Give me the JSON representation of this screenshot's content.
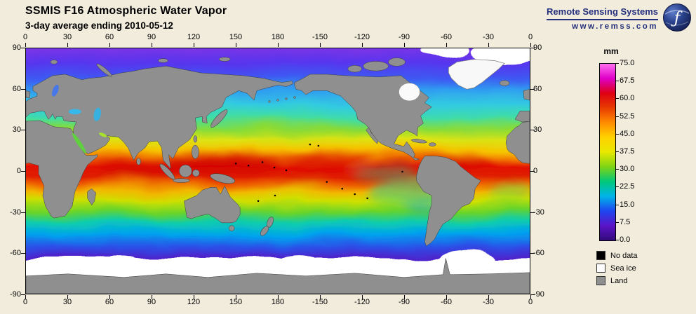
{
  "header": {
    "title": "SSMIS F16 Atmospheric Water Vapor",
    "subtitle": "3-day average ending 2010-05-12"
  },
  "branding": {
    "name": "Remote Sensing Systems",
    "url": "www.remss.com",
    "color": "#24307c"
  },
  "axes": {
    "lon_labels": [
      "0",
      "30",
      "60",
      "90",
      "120",
      "150",
      "180",
      "-150",
      "-120",
      "-90",
      "-60",
      "-30",
      "0"
    ],
    "lat_labels": [
      "90",
      "60",
      "30",
      "0",
      "-30",
      "-60",
      "-90"
    ]
  },
  "colorbar": {
    "unit": "mm",
    "tick_labels": [
      "75.0",
      "67.5",
      "60.0",
      "52.5",
      "45.0",
      "37.5",
      "30.0",
      "22.5",
      "15.0",
      "7.5",
      "0.0"
    ],
    "gradient": [
      "#ff70f0",
      "#e000c8",
      "#dd0012",
      "#e83c00",
      "#ff8c00",
      "#ffd200",
      "#e8e800",
      "#7fd414",
      "#00c87a",
      "#00b4e8",
      "#1e46f0",
      "#5a14c8",
      "#320a78"
    ]
  },
  "legend": {
    "items": [
      {
        "label": "No data",
        "color": "#000000"
      },
      {
        "label": "Sea ice",
        "color": "#ffffff"
      },
      {
        "label": "Land",
        "color": "#8f8f8f"
      }
    ]
  },
  "chart_data": {
    "type": "heatmap",
    "title": "SSMIS F16 Atmospheric Water Vapor",
    "subtitle": "3-day average ending 2010-05-12",
    "variable": "columnar atmospheric water vapor over ocean",
    "units": "mm",
    "projection": "equirectangular global grid",
    "x_axis": {
      "label": "longitude",
      "range": [
        0,
        360
      ],
      "tick_labels": [
        "0",
        "30",
        "60",
        "90",
        "120",
        "150",
        "180",
        "-150",
        "-120",
        "-90",
        "-60",
        "-30",
        "0"
      ]
    },
    "y_axis": {
      "label": "latitude",
      "range": [
        -90,
        90
      ],
      "tick_labels": [
        "90",
        "60",
        "30",
        "0",
        "-30",
        "-60",
        "-90"
      ]
    },
    "color_scale": {
      "min": 0,
      "max": 75,
      "unit": "mm",
      "ticks": [
        75.0,
        67.5,
        60.0,
        52.5,
        45.0,
        37.5,
        30.0,
        22.5,
        15.0,
        7.5,
        0.0
      ],
      "style": "rainbow: violet/purple = dry (0 mm), blue-cyan-green-yellow-orange = mid values, red-magenta = moist (75 mm)"
    },
    "mask_legend": [
      "No data",
      "Sea ice",
      "Land"
    ],
    "zonal_mean_estimates": {
      "lat": [
        70,
        60,
        50,
        40,
        30,
        20,
        10,
        5,
        0,
        -5,
        -10,
        -20,
        -30,
        -40,
        -50,
        -60,
        -70
      ],
      "water_vapor_mm": [
        6,
        10,
        14,
        19,
        27,
        38,
        52,
        58,
        54,
        50,
        45,
        33,
        24,
        17,
        11,
        6,
        3
      ]
    },
    "notable_features": [
      "Narrow deep-red ITCZ band (>60 mm) just north of the equator across all ocean basins",
      "Drier equatorial cold-tongue in the eastern Pacific south of the ITCZ",
      "Dry subtropical belts (~20-35 mm) near 25N and 25S",
      "Purple dry high-latitude oceans; white sea-ice ring surrounding Antarctica near 65S",
      "Gray continents (land mask); small black dots mark no-data islands"
    ]
  }
}
